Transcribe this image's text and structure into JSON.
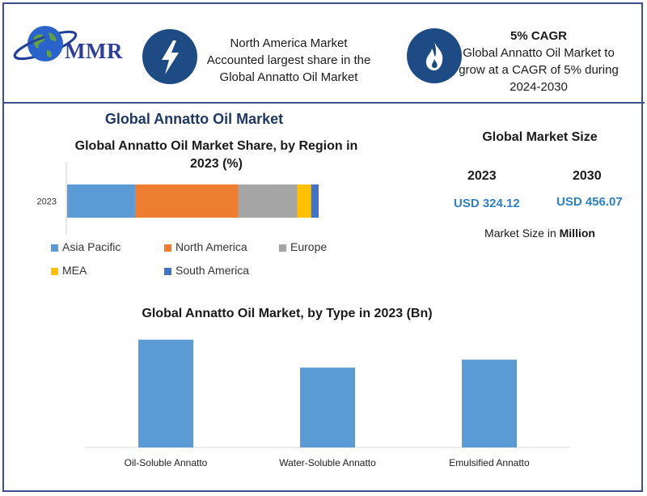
{
  "header": {
    "logo_text": "MMR",
    "highlight_1": {
      "icon": "lightning-icon",
      "lines": [
        "North America Market",
        "Accounted largest share in the",
        "Global Annatto Oil Market"
      ]
    },
    "highlight_2": {
      "icon": "flame-icon",
      "title": "5% CAGR",
      "lines": [
        "Global Annatto Oil Market to",
        "grow at a CAGR of 5% during",
        "2024-2030"
      ]
    }
  },
  "main_title": "Global Annatto Oil Market",
  "market_size": {
    "title": "Global Market Size",
    "years": [
      "2023",
      "2030"
    ],
    "values": [
      "USD 324.12",
      "USD 456.07"
    ],
    "note_prefix": "Market Size in ",
    "note_unit": "Million"
  },
  "colors": {
    "asia_pacific": "#5b9bd5",
    "north_america": "#ed7d31",
    "europe": "#a5a5a5",
    "mea": "#ffc000",
    "south_america": "#4472c4",
    "bar": "#5b9bd5",
    "accent": "#1f4b85"
  },
  "chart_data": [
    {
      "type": "bar",
      "orientation": "horizontal-stacked",
      "title": "Global Annatto Oil Market Share, by Region in 2023 (%)",
      "categories": [
        "2023"
      ],
      "series": [
        {
          "name": "Asia Pacific",
          "values": [
            27
          ]
        },
        {
          "name": "North America",
          "values": [
            41
          ]
        },
        {
          "name": "Europe",
          "values": [
            23.5
          ]
        },
        {
          "name": "MEA",
          "values": [
            5.5
          ]
        },
        {
          "name": "South America",
          "values": [
            3
          ]
        }
      ],
      "legend": "bottom"
    },
    {
      "type": "bar",
      "title": "Global Annatto Oil Market, by Type  in 2023 (Bn)",
      "categories": [
        "Oil-Soluble Annatto",
        "Water-Soluble Annatto",
        "Emulsified Annatto"
      ],
      "values": [
        135,
        100,
        110
      ],
      "ylim": [
        0,
        150
      ],
      "grid": false
    }
  ]
}
